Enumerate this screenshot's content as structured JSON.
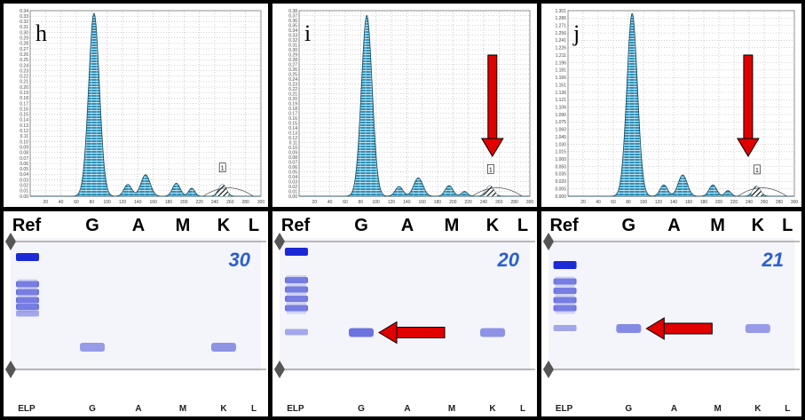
{
  "chart_data": [
    {
      "type": "area",
      "panel": "h",
      "x": [
        0,
        20,
        40,
        60,
        80,
        100,
        120,
        140,
        160,
        180,
        200,
        220,
        240,
        260,
        280,
        300
      ],
      "x_ticks": [
        "20",
        "40",
        "60",
        "80",
        "100",
        "120",
        "140",
        "160",
        "180",
        "200",
        "220",
        "240",
        "260",
        "280",
        "300"
      ],
      "y_ticks": [
        "0.34",
        "0.33",
        "0.32",
        "0.31",
        "0.30",
        "0.29",
        "0.28",
        "0.27",
        "0.26",
        "0.25",
        "0.24",
        "0.23",
        "0.22",
        "0.21",
        "0.20",
        "0.19",
        "0.18",
        "0.17",
        "0.16",
        "0.15",
        "0.14",
        "0.13",
        "0.12",
        "0.11",
        "0.10",
        "0.09",
        "0.08",
        "0.07",
        "0.06",
        "0.05",
        "0.04",
        "0.03",
        "0.02",
        "0.01",
        "0.00"
      ],
      "ylim": [
        0,
        0.345
      ],
      "xlim": [
        0,
        300
      ],
      "peaks": [
        {
          "x": 83,
          "height": 0.34,
          "width": 7
        },
        {
          "x": 127,
          "height": 0.022,
          "width": 5
        },
        {
          "x": 150,
          "height": 0.04,
          "width": 6
        },
        {
          "x": 190,
          "height": 0.024,
          "width": 5
        },
        {
          "x": 210,
          "height": 0.015,
          "width": 4
        },
        {
          "x": 250,
          "height": 0.022,
          "width": 5
        }
      ],
      "shaded_peak_x": [
        242,
        258
      ],
      "marker_label": "1",
      "arrow": false
    },
    {
      "type": "area",
      "panel": "i",
      "x": [
        0,
        20,
        40,
        60,
        80,
        100,
        120,
        140,
        160,
        180,
        200,
        220,
        240,
        260,
        280,
        300
      ],
      "x_ticks": [
        "20",
        "40",
        "60",
        "80",
        "100",
        "120",
        "140",
        "160",
        "180",
        "200",
        "220",
        "240",
        "260",
        "280",
        "300"
      ],
      "y_ticks": [
        "0.38",
        "0.37",
        "0.36",
        "0.35",
        "0.34",
        "0.33",
        "0.32",
        "0.31",
        "0.30",
        "0.29",
        "0.28",
        "0.27",
        "0.26",
        "0.25",
        "0.24",
        "0.23",
        "0.22",
        "0.21",
        "0.20",
        "0.19",
        "0.18",
        "0.17",
        "0.16",
        "0.15",
        "0.14",
        "0.13",
        "0.12",
        "0.11",
        "0.10",
        "0.09",
        "0.08",
        "0.07",
        "0.06",
        "0.05",
        "0.04",
        "0.03",
        "0.02",
        "0.01",
        "0.00"
      ],
      "ylim": [
        0,
        0.385
      ],
      "xlim": [
        0,
        300
      ],
      "peaks": [
        {
          "x": 88,
          "height": 0.375,
          "width": 7
        },
        {
          "x": 130,
          "height": 0.02,
          "width": 5
        },
        {
          "x": 155,
          "height": 0.038,
          "width": 6
        },
        {
          "x": 195,
          "height": 0.022,
          "width": 5
        },
        {
          "x": 215,
          "height": 0.01,
          "width": 4
        },
        {
          "x": 248,
          "height": 0.022,
          "width": 5
        }
      ],
      "shaded_peak_x": [
        240,
        258
      ],
      "marker_label": "1",
      "arrow": true
    },
    {
      "type": "area",
      "panel": "j",
      "x": [
        0,
        20,
        40,
        60,
        80,
        100,
        120,
        140,
        160,
        180,
        200,
        220,
        240,
        260,
        280,
        300
      ],
      "x_ticks": [
        "20",
        "40",
        "60",
        "80",
        "100",
        "120",
        "140",
        "160",
        "180",
        "200",
        "220",
        "240",
        "260",
        "280",
        "300"
      ],
      "y_ticks": [
        "1.301",
        "1.286",
        "1.271",
        "1.256",
        "1.241",
        "1.226",
        "1.211",
        "1.196",
        "1.181",
        "1.166",
        "1.151",
        "1.136",
        "1.121",
        "1.106",
        "1.090",
        "1.075",
        "1.060",
        "1.045",
        "1.030",
        "1.015",
        "1.000",
        "0.050",
        "0.035",
        "0.020",
        "0.005",
        "0.000"
      ],
      "ylim": [
        0,
        1.31
      ],
      "xlim": [
        0,
        300
      ],
      "peaks": [
        {
          "x": 85,
          "height": 1.29,
          "width": 7
        },
        {
          "x": 127,
          "height": 0.08,
          "width": 5
        },
        {
          "x": 152,
          "height": 0.15,
          "width": 6
        },
        {
          "x": 192,
          "height": 0.08,
          "width": 5
        },
        {
          "x": 212,
          "height": 0.04,
          "width": 4
        },
        {
          "x": 250,
          "height": 0.07,
          "width": 5
        }
      ],
      "shaded_peak_x": [
        243,
        258
      ],
      "marker_label": "1",
      "arrow": true
    }
  ],
  "panels": [
    {
      "letter": "h",
      "gel_number": "30"
    },
    {
      "letter": "i",
      "gel_number": "20"
    },
    {
      "letter": "j",
      "gel_number": "21"
    }
  ],
  "gel": {
    "lane_headers": [
      "Ref",
      "G",
      "A",
      "M",
      "K",
      "L"
    ],
    "lane_footers": [
      "ELP",
      "G",
      "A",
      "M",
      "K",
      "L"
    ],
    "colors": {
      "band_dark": "#1b2ad6",
      "band_mid": "#4a52d8",
      "band_light": "#8d93e6",
      "gel_bg": "#f4f4fb",
      "arrow": "#e00000"
    },
    "bands": [
      {
        "panel": "h",
        "ref": [
          0.14,
          0.35,
          0.41,
          0.47,
          0.52,
          0.57
        ],
        "lanes": [
          {
            "lane": "G",
            "pos": 0.82,
            "intensity": 0.55
          },
          {
            "lane": "K",
            "pos": 0.82,
            "intensity": 0.6
          }
        ]
      },
      {
        "panel": "i",
        "ref": [
          0.1,
          0.32,
          0.39,
          0.46,
          0.53,
          0.71
        ],
        "lanes": [
          {
            "lane": "G",
            "pos": 0.71,
            "intensity": 0.8
          },
          {
            "lane": "K",
            "pos": 0.71,
            "intensity": 0.6
          }
        ],
        "arrow": true
      },
      {
        "panel": "j",
        "ref": [
          0.2,
          0.33,
          0.4,
          0.47,
          0.53,
          0.68
        ],
        "lanes": [
          {
            "lane": "G",
            "pos": 0.68,
            "intensity": 0.65
          },
          {
            "lane": "K",
            "pos": 0.68,
            "intensity": 0.55
          }
        ],
        "arrow": true
      }
    ]
  }
}
